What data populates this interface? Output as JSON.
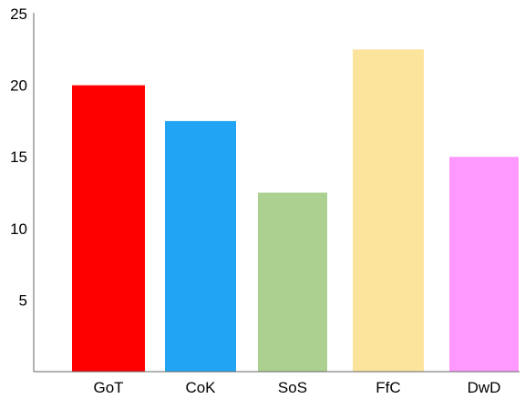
{
  "chart_data": {
    "type": "bar",
    "title": "",
    "xlabel": "",
    "ylabel": "",
    "categories": [
      "GoT",
      "CoK",
      "SoS",
      "FfC",
      "DwD"
    ],
    "values": [
      20,
      17.5,
      12.5,
      22.5,
      15
    ],
    "colors": [
      "#ff0000",
      "#22a4f5",
      "#abd090",
      "#fce49c",
      "#ff99ff"
    ],
    "ylim": [
      0,
      25
    ],
    "yticks": [
      "0",
      "5",
      "10",
      "15",
      "20",
      "25"
    ],
    "grid": false,
    "legend": "none"
  }
}
